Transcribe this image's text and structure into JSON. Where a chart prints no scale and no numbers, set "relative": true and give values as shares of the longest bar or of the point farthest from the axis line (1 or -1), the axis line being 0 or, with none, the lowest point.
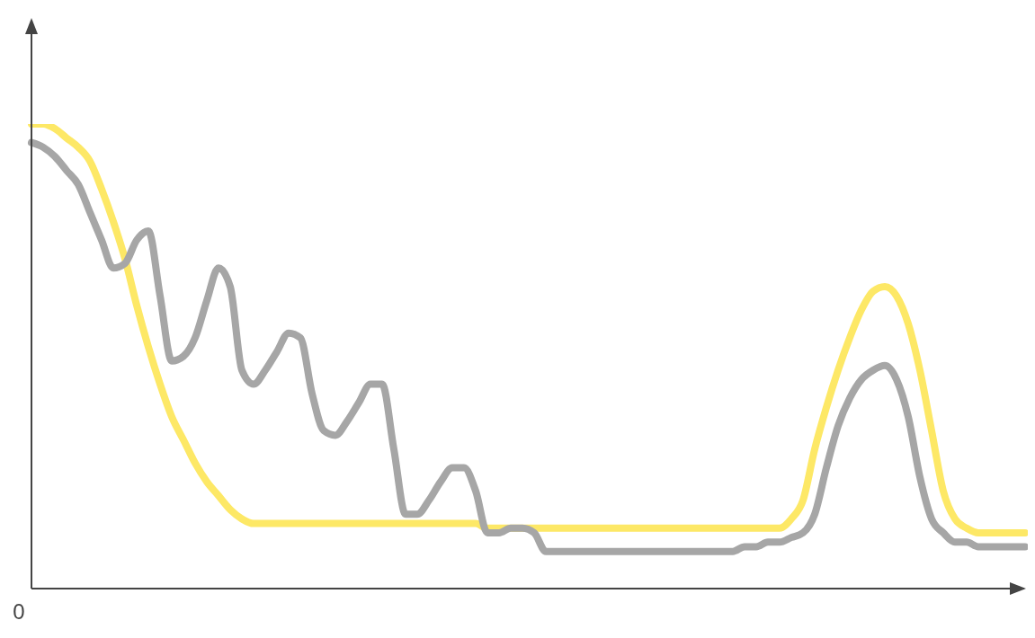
{
  "chart_data": {
    "type": "line",
    "relative": true,
    "categories": [
      null,
      null,
      null,
      null,
      null,
      null,
      null,
      null,
      null,
      null,
      null,
      null,
      null,
      null,
      null,
      null,
      null,
      null,
      null,
      null,
      null,
      null,
      null,
      null,
      null,
      null,
      null,
      null,
      null,
      null,
      null,
      null,
      null,
      null,
      null,
      null,
      null,
      null,
      null,
      null,
      null,
      null,
      null,
      null,
      null,
      null,
      null,
      null,
      null,
      null,
      null,
      null,
      null,
      null,
      null,
      null,
      null,
      null,
      null,
      null,
      null,
      null,
      null,
      null,
      null,
      null,
      null,
      null,
      null,
      null,
      null,
      null,
      null,
      null,
      null,
      null,
      null,
      null,
      null,
      null,
      null,
      null,
      null,
      null,
      null,
      null
    ],
    "series": [
      {
        "color": "#fde866",
        "values": [
          1.0,
          1.0,
          0.99,
          0.97,
          0.95,
          0.92,
          0.86,
          0.79,
          0.71,
          0.61,
          0.52,
          0.44,
          0.37,
          0.32,
          0.27,
          0.23,
          0.2,
          0.17,
          0.15,
          0.14,
          0.14,
          0.14,
          0.14,
          0.14,
          0.14,
          0.14,
          0.14,
          0.14,
          0.14,
          0.14,
          0.14,
          0.14,
          0.14,
          0.14,
          0.14,
          0.14,
          0.14,
          0.14,
          0.14,
          0.13,
          0.13,
          0.13,
          0.13,
          0.13,
          0.13,
          0.13,
          0.13,
          0.13,
          0.13,
          0.13,
          0.13,
          0.13,
          0.13,
          0.13,
          0.13,
          0.13,
          0.13,
          0.13,
          0.13,
          0.13,
          0.13,
          0.13,
          0.13,
          0.13,
          0.13,
          0.15,
          0.19,
          0.3,
          0.39,
          0.47,
          0.54,
          0.6,
          0.64,
          0.65,
          0.63,
          0.57,
          0.47,
          0.34,
          0.21,
          0.15,
          0.13,
          0.12,
          0.12,
          0.12,
          0.12,
          0.12
        ]
      },
      {
        "color": "#a6a6a6",
        "values": [
          0.96,
          0.95,
          0.93,
          0.9,
          0.87,
          0.81,
          0.75,
          0.69,
          0.7,
          0.75,
          0.77,
          0.63,
          0.49,
          0.5,
          0.54,
          0.62,
          0.69,
          0.65,
          0.47,
          0.44,
          0.47,
          0.51,
          0.55,
          0.54,
          0.42,
          0.34,
          0.33,
          0.36,
          0.4,
          0.44,
          0.44,
          0.3,
          0.16,
          0.16,
          0.19,
          0.23,
          0.26,
          0.26,
          0.21,
          0.12,
          0.12,
          0.13,
          0.13,
          0.12,
          0.08,
          0.08,
          0.08,
          0.08,
          0.08,
          0.08,
          0.08,
          0.08,
          0.08,
          0.08,
          0.08,
          0.08,
          0.08,
          0.08,
          0.08,
          0.08,
          0.08,
          0.09,
          0.09,
          0.1,
          0.1,
          0.11,
          0.12,
          0.16,
          0.26,
          0.35,
          0.41,
          0.45,
          0.47,
          0.48,
          0.45,
          0.37,
          0.24,
          0.15,
          0.12,
          0.1,
          0.1,
          0.09,
          0.09,
          0.09,
          0.09,
          0.09
        ]
      }
    ],
    "annotations": [
      "0"
    ]
  }
}
